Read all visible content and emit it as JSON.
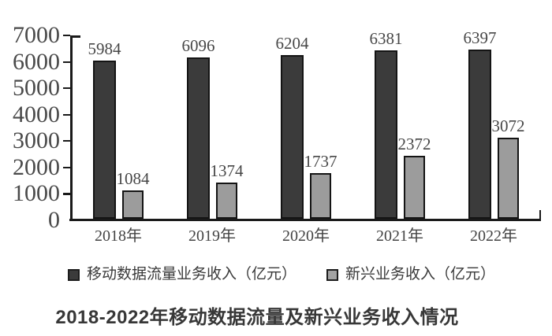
{
  "chart_data": {
    "type": "bar",
    "categories": [
      "2018年",
      "2019年",
      "2020年",
      "2021年",
      "2022年"
    ],
    "series": [
      {
        "name": "移动数据流量业务收入（亿元）",
        "values": [
          5984,
          6096,
          6204,
          6381,
          6397
        ],
        "color": "#3b3b3b"
      },
      {
        "name": "新兴业务收入（亿元）",
        "values": [
          1084,
          1374,
          1737,
          2372,
          3072
        ],
        "color": "#9c9c9c"
      }
    ],
    "title": "2018-2022年移动数据流量及新兴业务收入情况",
    "xlabel": "",
    "ylabel": "",
    "ylim": [
      0,
      7000
    ],
    "y_ticks": [
      0,
      1000,
      2000,
      3000,
      4000,
      5000,
      6000,
      7000
    ],
    "grid": false,
    "legend_position": "bottom",
    "bar_labels": true
  },
  "colors": {
    "axis": "#1a1a1a",
    "bar_border": "#141414",
    "dark_series": "#3b3b3b",
    "gray_series": "#9c9c9c",
    "text": "#4a4a4a"
  }
}
